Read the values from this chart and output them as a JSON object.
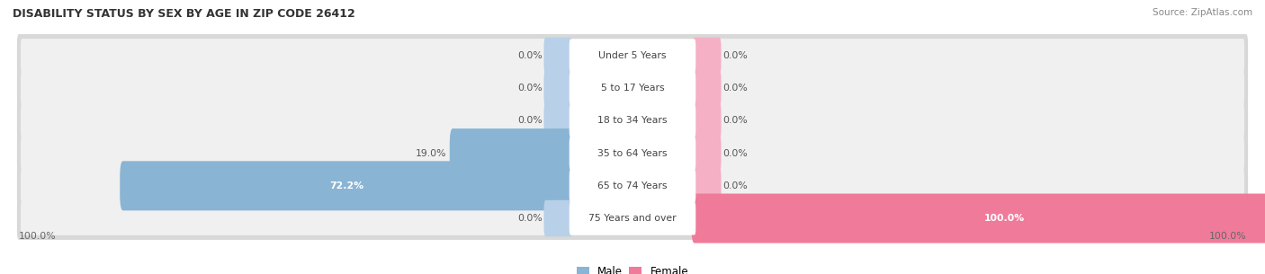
{
  "title": "DISABILITY STATUS BY SEX BY AGE IN ZIP CODE 26412",
  "source": "Source: ZipAtlas.com",
  "categories": [
    "Under 5 Years",
    "5 to 17 Years",
    "18 to 34 Years",
    "35 to 64 Years",
    "65 to 74 Years",
    "75 Years and over"
  ],
  "male_values": [
    0.0,
    0.0,
    0.0,
    19.0,
    72.2,
    0.0
  ],
  "female_values": [
    0.0,
    0.0,
    0.0,
    0.0,
    0.0,
    100.0
  ],
  "male_bar_color": "#8ab4d4",
  "female_bar_color": "#f07a9a",
  "male_stub_color": "#b8d0e8",
  "female_stub_color": "#f5b0c5",
  "row_bg_outer": "#d8d8d8",
  "row_bg_inner": "#f0f0f0",
  "center_label_color": "#ffffff",
  "x_left_label": "100.0%",
  "x_right_label": "100.0%",
  "legend_male_label": "Male",
  "legend_female_label": "Female",
  "center_label_text_color": "#444444",
  "value_label_color": "#555555",
  "value_label_inside_color": "#ffffff"
}
